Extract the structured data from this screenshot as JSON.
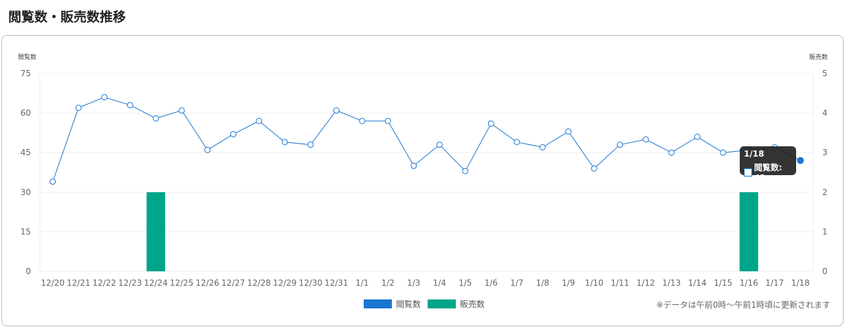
{
  "header": {
    "title": "閲覧数・販売数推移"
  },
  "note": "※データは午前0時～午前1時頃に更新されます",
  "tooltip": {
    "date": "1/18",
    "label": "閲覧数: 42"
  },
  "chart_data": {
    "type": "line+bar",
    "categories": [
      "12/20",
      "12/21",
      "12/22",
      "12/23",
      "12/24",
      "12/25",
      "12/26",
      "12/27",
      "12/28",
      "12/29",
      "12/30",
      "12/31",
      "1/1",
      "1/2",
      "1/3",
      "1/4",
      "1/5",
      "1/6",
      "1/7",
      "1/8",
      "1/9",
      "1/10",
      "1/11",
      "1/12",
      "1/13",
      "1/14",
      "1/15",
      "1/16",
      "1/17",
      "1/18"
    ],
    "series": [
      {
        "name": "閲覧数",
        "type": "line",
        "axis": "left",
        "color": "#1976d2",
        "values": [
          34,
          62,
          66,
          63,
          58,
          61,
          46,
          52,
          57,
          49,
          48,
          61,
          57,
          57,
          40,
          48,
          38,
          56,
          49,
          47,
          53,
          39,
          48,
          50,
          45,
          51,
          45,
          46,
          47,
          42
        ]
      },
      {
        "name": "販売数",
        "type": "bar",
        "axis": "right",
        "color": "#00a58a",
        "values": [
          0,
          0,
          0,
          0,
          2,
          0,
          0,
          0,
          0,
          0,
          0,
          0,
          0,
          0,
          0,
          0,
          0,
          0,
          0,
          0,
          0,
          0,
          0,
          0,
          0,
          0,
          0,
          2,
          0,
          0
        ]
      }
    ],
    "ylabel_left": "閲覧数",
    "ylabel_right": "販売数",
    "ylim_left": [
      0,
      75
    ],
    "yticks_left": [
      0,
      15,
      30,
      45,
      60,
      75
    ],
    "ylim_right": [
      0,
      5
    ],
    "yticks_right": [
      0,
      1,
      2,
      3,
      4,
      5
    ],
    "grid": true,
    "legend": "bottom"
  }
}
